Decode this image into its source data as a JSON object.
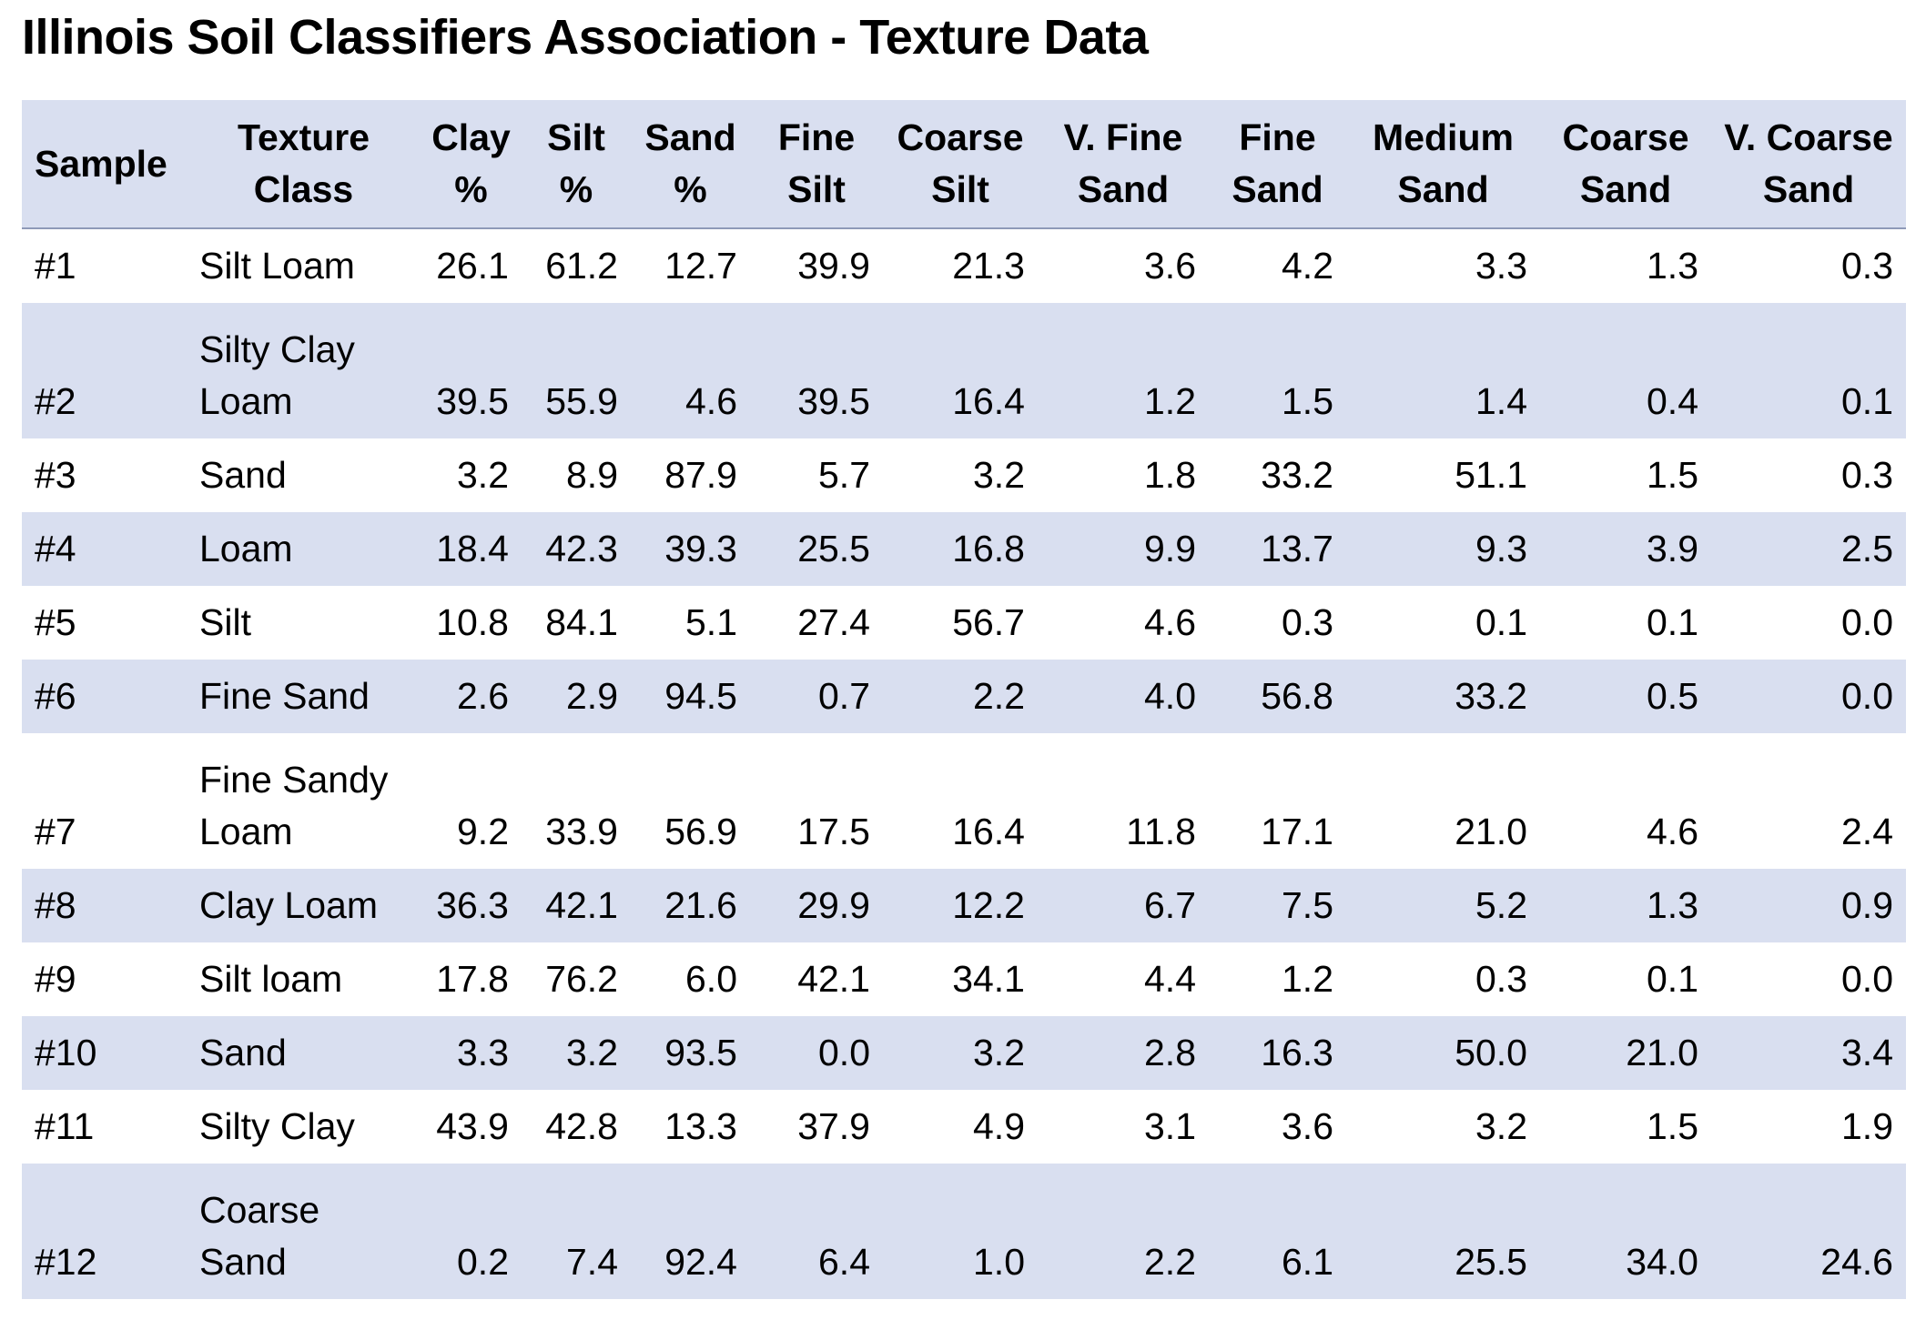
{
  "title": "Illinois Soil Classifiers Association - Texture Data",
  "colors": {
    "band": "#d9dff0",
    "header_rule": "#8f9ab8",
    "text": "#000000",
    "background": "#ffffff"
  },
  "table": {
    "headers": [
      [
        "Sample"
      ],
      [
        "Texture",
        "Class"
      ],
      [
        "Clay",
        "%"
      ],
      [
        "Silt",
        "%"
      ],
      [
        "Sand",
        "%"
      ],
      [
        "Fine",
        "Silt"
      ],
      [
        "Coarse",
        "Silt"
      ],
      [
        "V. Fine",
        "Sand"
      ],
      [
        "Fine",
        "Sand"
      ],
      [
        "Medium",
        "Sand"
      ],
      [
        "Coarse",
        "Sand"
      ],
      [
        "V. Coarse",
        "Sand"
      ]
    ],
    "rows": [
      {
        "sample": "#1",
        "texture_class": [
          "Silt Loam"
        ],
        "values": [
          "26.1",
          "61.2",
          "12.7",
          "39.9",
          "21.3",
          "3.6",
          "4.2",
          "3.3",
          "1.3",
          "0.3"
        ]
      },
      {
        "sample": "#2",
        "texture_class": [
          "Silty Clay",
          "Loam"
        ],
        "values": [
          "39.5",
          "55.9",
          "4.6",
          "39.5",
          "16.4",
          "1.2",
          "1.5",
          "1.4",
          "0.4",
          "0.1"
        ]
      },
      {
        "sample": "#3",
        "texture_class": [
          "Sand"
        ],
        "values": [
          "3.2",
          "8.9",
          "87.9",
          "5.7",
          "3.2",
          "1.8",
          "33.2",
          "51.1",
          "1.5",
          "0.3"
        ]
      },
      {
        "sample": "#4",
        "texture_class": [
          "Loam"
        ],
        "values": [
          "18.4",
          "42.3",
          "39.3",
          "25.5",
          "16.8",
          "9.9",
          "13.7",
          "9.3",
          "3.9",
          "2.5"
        ]
      },
      {
        "sample": "#5",
        "texture_class": [
          "Silt"
        ],
        "values": [
          "10.8",
          "84.1",
          "5.1",
          "27.4",
          "56.7",
          "4.6",
          "0.3",
          "0.1",
          "0.1",
          "0.0"
        ]
      },
      {
        "sample": "#6",
        "texture_class": [
          "Fine Sand"
        ],
        "values": [
          "2.6",
          "2.9",
          "94.5",
          "0.7",
          "2.2",
          "4.0",
          "56.8",
          "33.2",
          "0.5",
          "0.0"
        ]
      },
      {
        "sample": "#7",
        "texture_class": [
          "Fine Sandy",
          "Loam"
        ],
        "values": [
          "9.2",
          "33.9",
          "56.9",
          "17.5",
          "16.4",
          "11.8",
          "17.1",
          "21.0",
          "4.6",
          "2.4"
        ]
      },
      {
        "sample": "#8",
        "texture_class": [
          "Clay Loam"
        ],
        "values": [
          "36.3",
          "42.1",
          "21.6",
          "29.9",
          "12.2",
          "6.7",
          "7.5",
          "5.2",
          "1.3",
          "0.9"
        ]
      },
      {
        "sample": "#9",
        "texture_class": [
          "Silt loam"
        ],
        "values": [
          "17.8",
          "76.2",
          "6.0",
          "42.1",
          "34.1",
          "4.4",
          "1.2",
          "0.3",
          "0.1",
          "0.0"
        ]
      },
      {
        "sample": "#10",
        "texture_class": [
          "Sand"
        ],
        "values": [
          "3.3",
          "3.2",
          "93.5",
          "0.0",
          "3.2",
          "2.8",
          "16.3",
          "50.0",
          "21.0",
          "3.4"
        ]
      },
      {
        "sample": "#11",
        "texture_class": [
          "Silty Clay"
        ],
        "values": [
          "43.9",
          "42.8",
          "13.3",
          "37.9",
          "4.9",
          "3.1",
          "3.6",
          "3.2",
          "1.5",
          "1.9"
        ]
      },
      {
        "sample": "#12",
        "texture_class": [
          "Coarse",
          "Sand"
        ],
        "values": [
          "0.2",
          "7.4",
          "92.4",
          "6.4",
          "1.0",
          "2.2",
          "6.1",
          "25.5",
          "34.0",
          "24.6"
        ]
      }
    ]
  }
}
